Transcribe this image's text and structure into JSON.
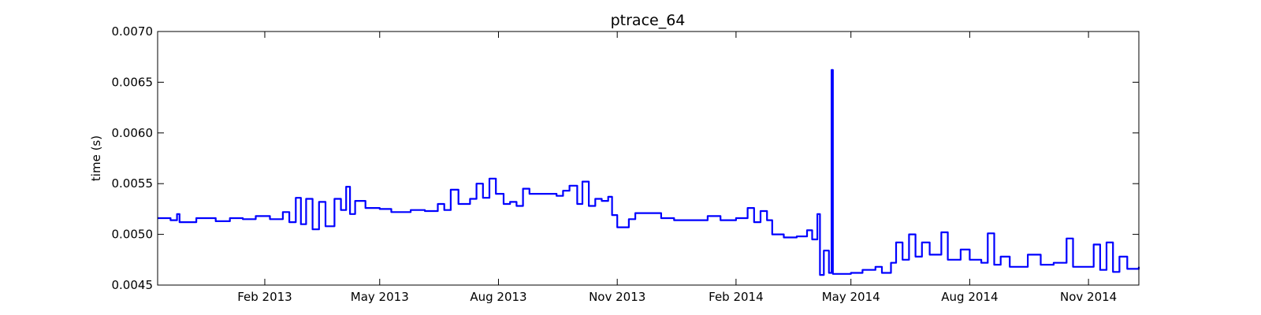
{
  "chart_data": {
    "type": "line",
    "title": "ptrace_64",
    "xlabel": "",
    "ylabel": "time (s)",
    "ylim": [
      0.0045,
      0.007
    ],
    "xlim": [
      "2012-11-10",
      "2014-12-10"
    ],
    "grid": false,
    "line_color": "#0000ff",
    "y_ticks": [
      {
        "value": 0.0045,
        "label": "0.0045"
      },
      {
        "value": 0.005,
        "label": "0.0050"
      },
      {
        "value": 0.0055,
        "label": "0.0055"
      },
      {
        "value": 0.006,
        "label": "0.0060"
      },
      {
        "value": 0.0065,
        "label": "0.0065"
      },
      {
        "value": 0.007,
        "label": "0.0070"
      }
    ],
    "x_ticks": [
      {
        "value": "2013-02-01",
        "label": "Feb 2013"
      },
      {
        "value": "2013-05-01",
        "label": "May 2013"
      },
      {
        "value": "2013-08-01",
        "label": "Aug 2013"
      },
      {
        "value": "2013-11-01",
        "label": "Nov 2013"
      },
      {
        "value": "2014-02-01",
        "label": "Feb 2014"
      },
      {
        "value": "2014-05-01",
        "label": "May 2014"
      },
      {
        "value": "2014-08-01",
        "label": "Aug 2014"
      },
      {
        "value": "2014-11-01",
        "label": "Nov 2014"
      }
    ],
    "series": [
      {
        "points": [
          [
            "2012-11-10",
            0.00516
          ],
          [
            "2012-11-20",
            0.00514
          ],
          [
            "2012-11-25",
            0.0052
          ],
          [
            "2012-11-27",
            0.00512
          ],
          [
            "2012-12-10",
            0.00516
          ],
          [
            "2012-12-25",
            0.00513
          ],
          [
            "2013-01-05",
            0.00516
          ],
          [
            "2013-01-15",
            0.00515
          ],
          [
            "2013-01-25",
            0.00518
          ],
          [
            "2013-02-05",
            0.00515
          ],
          [
            "2013-02-15",
            0.00522
          ],
          [
            "2013-02-20",
            0.00512
          ],
          [
            "2013-02-25",
            0.00536
          ],
          [
            "2013-03-01",
            0.0051
          ],
          [
            "2013-03-05",
            0.00535
          ],
          [
            "2013-03-10",
            0.00505
          ],
          [
            "2013-03-15",
            0.00532
          ],
          [
            "2013-03-20",
            0.00508
          ],
          [
            "2013-03-27",
            0.00535
          ],
          [
            "2013-04-01",
            0.00524
          ],
          [
            "2013-04-05",
            0.00547
          ],
          [
            "2013-04-08",
            0.0052
          ],
          [
            "2013-04-12",
            0.00533
          ],
          [
            "2013-04-20",
            0.00526
          ],
          [
            "2013-05-01",
            0.00525
          ],
          [
            "2013-05-10",
            0.00522
          ],
          [
            "2013-05-25",
            0.00524
          ],
          [
            "2013-06-05",
            0.00523
          ],
          [
            "2013-06-15",
            0.0053
          ],
          [
            "2013-06-20",
            0.00524
          ],
          [
            "2013-06-25",
            0.00544
          ],
          [
            "2013-07-01",
            0.0053
          ],
          [
            "2013-07-10",
            0.00535
          ],
          [
            "2013-07-15",
            0.0055
          ],
          [
            "2013-07-20",
            0.00536
          ],
          [
            "2013-07-25",
            0.00555
          ],
          [
            "2013-07-30",
            0.0054
          ],
          [
            "2013-08-05",
            0.0053
          ],
          [
            "2013-08-10",
            0.00532
          ],
          [
            "2013-08-15",
            0.00528
          ],
          [
            "2013-08-20",
            0.00545
          ],
          [
            "2013-08-25",
            0.0054
          ],
          [
            "2013-09-01",
            0.0054
          ],
          [
            "2013-09-15",
            0.00538
          ],
          [
            "2013-09-20",
            0.00543
          ],
          [
            "2013-09-25",
            0.00548
          ],
          [
            "2013-10-01",
            0.0053
          ],
          [
            "2013-10-05",
            0.00552
          ],
          [
            "2013-10-10",
            0.00528
          ],
          [
            "2013-10-15",
            0.00535
          ],
          [
            "2013-10-20",
            0.00533
          ],
          [
            "2013-10-25",
            0.00537
          ],
          [
            "2013-10-28",
            0.00519
          ],
          [
            "2013-11-01",
            0.00507
          ],
          [
            "2013-11-05",
            0.00507
          ],
          [
            "2013-11-10",
            0.00515
          ],
          [
            "2013-11-15",
            0.00521
          ],
          [
            "2013-11-25",
            0.00521
          ],
          [
            "2013-12-05",
            0.00516
          ],
          [
            "2013-12-15",
            0.00514
          ],
          [
            "2014-01-01",
            0.00514
          ],
          [
            "2014-01-10",
            0.00518
          ],
          [
            "2014-01-20",
            0.00514
          ],
          [
            "2014-02-01",
            0.00516
          ],
          [
            "2014-02-10",
            0.00526
          ],
          [
            "2014-02-15",
            0.00512
          ],
          [
            "2014-02-20",
            0.00523
          ],
          [
            "2014-02-25",
            0.00514
          ],
          [
            "2014-03-01",
            0.005
          ],
          [
            "2014-03-10",
            0.00497
          ],
          [
            "2014-03-20",
            0.00498
          ],
          [
            "2014-03-28",
            0.00504
          ],
          [
            "2014-04-01",
            0.00495
          ],
          [
            "2014-04-05",
            0.0052
          ],
          [
            "2014-04-07",
            0.0046
          ],
          [
            "2014-04-10",
            0.00484
          ],
          [
            "2014-04-14",
            0.00462
          ],
          [
            "2014-04-16",
            0.00662
          ],
          [
            "2014-04-17",
            0.00461
          ],
          [
            "2014-04-25",
            0.00461
          ],
          [
            "2014-05-01",
            0.00462
          ],
          [
            "2014-05-10",
            0.00465
          ],
          [
            "2014-05-20",
            0.00468
          ],
          [
            "2014-05-25",
            0.00462
          ],
          [
            "2014-06-01",
            0.00472
          ],
          [
            "2014-06-05",
            0.00492
          ],
          [
            "2014-06-10",
            0.00475
          ],
          [
            "2014-06-15",
            0.005
          ],
          [
            "2014-06-20",
            0.00478
          ],
          [
            "2014-06-25",
            0.00492
          ],
          [
            "2014-07-01",
            0.0048
          ],
          [
            "2014-07-10",
            0.00502
          ],
          [
            "2014-07-15",
            0.00475
          ],
          [
            "2014-07-25",
            0.00485
          ],
          [
            "2014-08-01",
            0.00475
          ],
          [
            "2014-08-10",
            0.00472
          ],
          [
            "2014-08-15",
            0.00501
          ],
          [
            "2014-08-20",
            0.0047
          ],
          [
            "2014-08-25",
            0.00478
          ],
          [
            "2014-09-01",
            0.00468
          ],
          [
            "2014-09-15",
            0.0048
          ],
          [
            "2014-09-25",
            0.0047
          ],
          [
            "2014-10-05",
            0.00472
          ],
          [
            "2014-10-15",
            0.00496
          ],
          [
            "2014-10-20",
            0.00468
          ],
          [
            "2014-11-01",
            0.00468
          ],
          [
            "2014-11-05",
            0.0049
          ],
          [
            "2014-11-10",
            0.00465
          ],
          [
            "2014-11-15",
            0.00492
          ],
          [
            "2014-11-20",
            0.00463
          ],
          [
            "2014-11-25",
            0.00478
          ],
          [
            "2014-12-01",
            0.00466
          ],
          [
            "2014-12-10",
            0.00468
          ]
        ]
      }
    ]
  }
}
